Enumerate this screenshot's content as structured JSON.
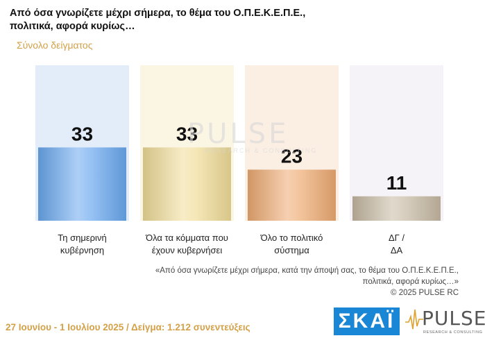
{
  "header": {
    "title": "Από όσα γνωρίζετε μέχρι σήμερα, το θέμα του Ο.Π.Ε.Κ.Ε.Π.Ε., πολιτικά, αφορά κυρίως…",
    "subtitle": "Σύνολο δείγματος"
  },
  "chart_data": {
    "type": "bar",
    "categories": [
      [
        "Τη σημερινή",
        "κυβέρνηση"
      ],
      [
        "Όλα τα κόμματα που",
        "έχουν κυβερνήσει"
      ],
      [
        "Όλο το πολιτικό",
        "σύστημα"
      ],
      [
        "ΔΓ /",
        "ΔΑ"
      ]
    ],
    "values": [
      33,
      33,
      23,
      11
    ],
    "ylim": [
      0,
      70
    ],
    "colors": [
      "#6aa8ef",
      "#f0dc98",
      "#eeaa72",
      "#c7b9a3"
    ],
    "bg_colors": [
      "#e3edfa",
      "#fbf5e4",
      "#fbeee3",
      "#f5f3f7"
    ],
    "grid": false
  },
  "note": {
    "line1": "«Από όσα γνωρίζετε μέχρι σήμερα, κατά την άποψή σας, το θέμα του Ο.Π.Ε.Κ.Ε.Π.Ε.,",
    "line2": "πολιτικά, αφορά κυρίως…»",
    "line3": "© 2025 PULSE RC"
  },
  "footer": {
    "text": "27 Ιουνίου - 1 Ιουλίου 2025 / Δείγμα: 1.212 συνεντεύξεις"
  },
  "logos": {
    "skai": "ΣΚΑΪ",
    "pulse": "PULSE",
    "pulse_sub": "RESEARCH & CONSULTING"
  },
  "watermark": {
    "name": "PULSE",
    "sub": "RESEARCH & CONSULTING"
  }
}
